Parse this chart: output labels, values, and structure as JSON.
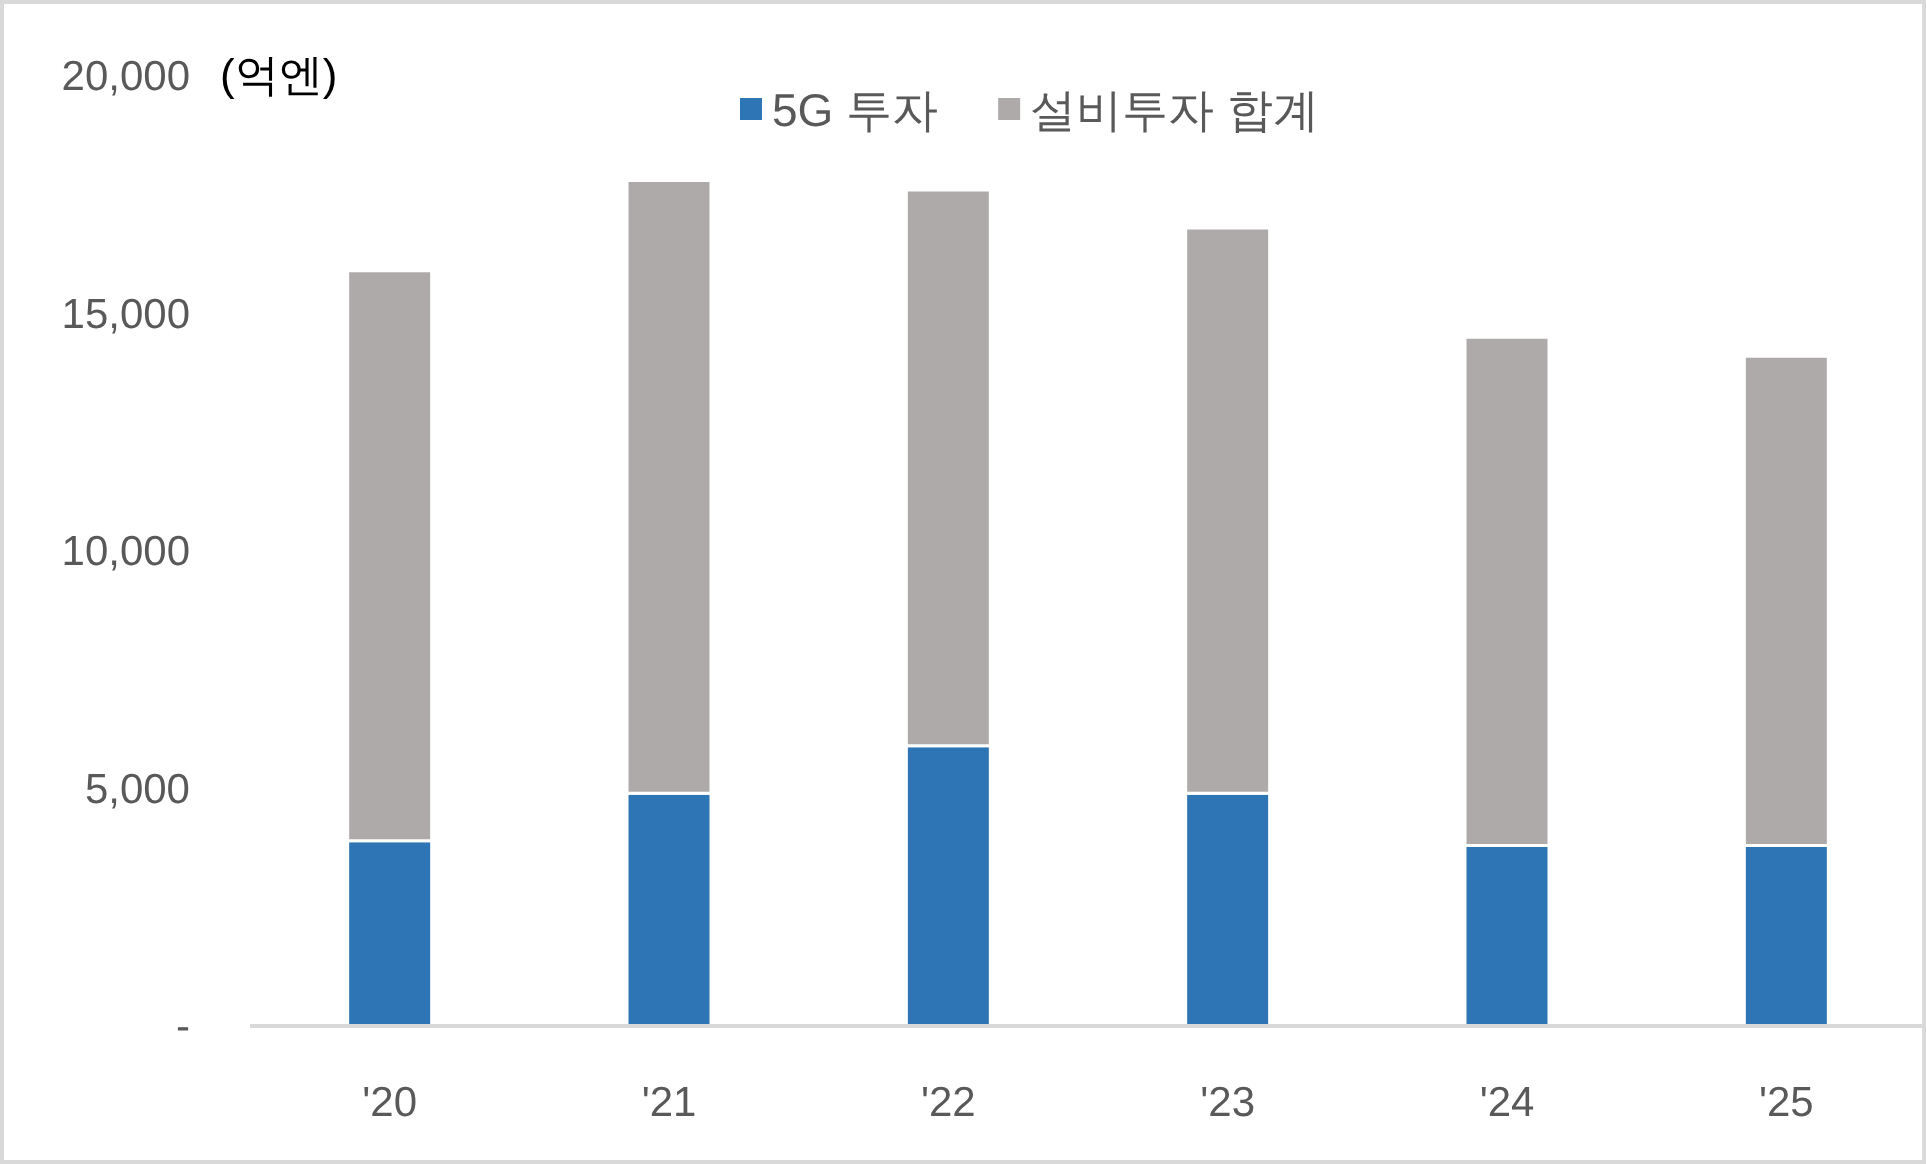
{
  "chart_data": {
    "type": "bar",
    "ylabel": "(억엔)",
    "categories": [
      "'20",
      "'21",
      "'22",
      "'23",
      "'24",
      "'25"
    ],
    "series": [
      {
        "name": "5G 투자",
        "color": "#2e75b6",
        "values": [
          3900,
          4900,
          5900,
          4900,
          3800,
          3800
        ]
      },
      {
        "name": "설비투자 합계",
        "color": "#aeaaaa",
        "values": [
          12000,
          12900,
          11700,
          11900,
          10700,
          10300
        ]
      }
    ],
    "stacked": true,
    "legend": "top",
    "ylim": [
      0,
      20000
    ],
    "yticks": [
      {
        "value": 0,
        "label": "-"
      },
      {
        "value": 5000,
        "label": "5,000"
      },
      {
        "value": 10000,
        "label": "10,000"
      },
      {
        "value": 15000,
        "label": "15,000"
      },
      {
        "value": 20000,
        "label": "20,000"
      }
    ]
  }
}
